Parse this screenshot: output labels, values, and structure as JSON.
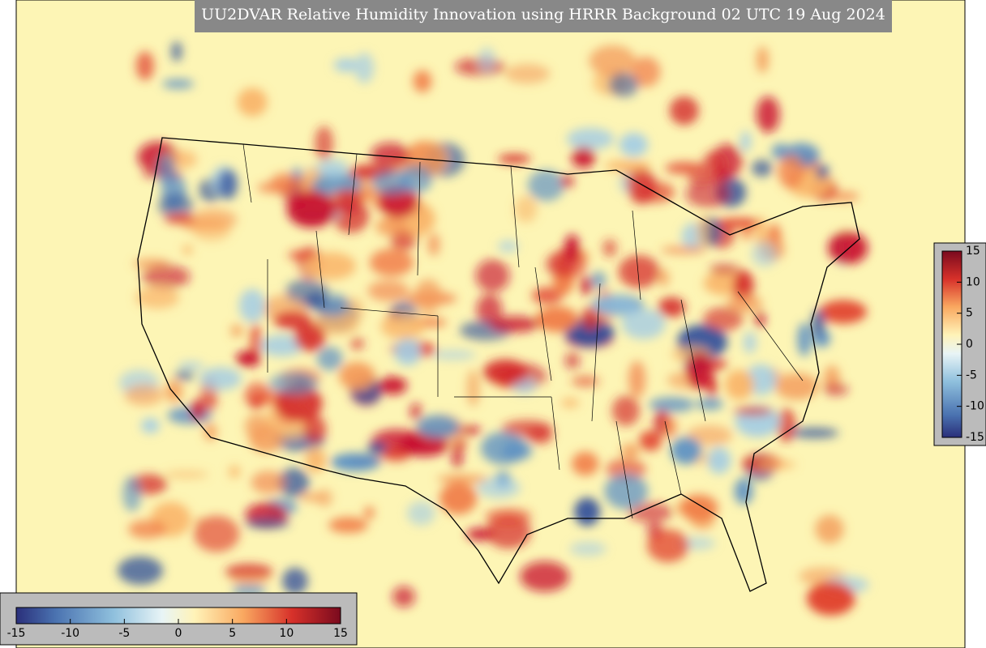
{
  "title": "UU2DVAR Relative Humidity Innovation using HRRR Background 02 UTC 19 Aug 2024",
  "colorbar_right": {
    "ticks": [
      15,
      10,
      5,
      0,
      -5,
      -10,
      -15
    ]
  },
  "colorbar_bottom": {
    "ticks": [
      -15,
      -10,
      -5,
      0,
      5,
      10,
      15
    ]
  }
}
